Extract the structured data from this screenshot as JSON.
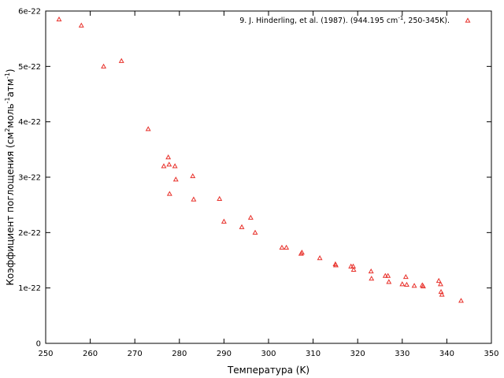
{
  "chart_data": {
    "type": "scatter",
    "xlabel": "Температура (K)",
    "ylabel": {
      "text": "Коэффициент поглощения (см",
      "sup1": "2",
      "mid": "моль",
      "sup2": "-1",
      "mid2": "атм",
      "sup3": "-1",
      "end": ")"
    },
    "xlim": [
      250,
      350
    ],
    "ylim": [
      0,
      6e-22
    ],
    "x_ticks": [
      {
        "value": 250,
        "label": "250"
      },
      {
        "value": 260,
        "label": "260"
      },
      {
        "value": 270,
        "label": "270"
      },
      {
        "value": 280,
        "label": "280"
      },
      {
        "value": 290,
        "label": "290"
      },
      {
        "value": 300,
        "label": "300"
      },
      {
        "value": 310,
        "label": "310"
      },
      {
        "value": 320,
        "label": "320"
      },
      {
        "value": 330,
        "label": "330"
      },
      {
        "value": 340,
        "label": "340"
      },
      {
        "value": 350,
        "label": "350"
      }
    ],
    "y_ticks": [
      {
        "value": 0,
        "label": "0"
      },
      {
        "value": 1e-22,
        "label": "1e-22"
      },
      {
        "value": 2e-22,
        "label": "2e-22"
      },
      {
        "value": 3e-22,
        "label": "3e-22"
      },
      {
        "value": 4e-22,
        "label": "4e-22"
      },
      {
        "value": 5e-22,
        "label": "5e-22"
      },
      {
        "value": 6e-22,
        "label": "6e-22"
      }
    ],
    "grid": false,
    "legend_position": "top-right",
    "series": [
      {
        "name": "9. J. Hinderling, et al. (1987). (944.195 cm-1, 250-345K).",
        "name_parts": {
          "before": "9. J. Hinderling, et al. (1987). (944.195 cm",
          "sup": "-1",
          "after": ", 250-345K)."
        },
        "color": "#e8302a",
        "marker": "triangle",
        "points": [
          [
            253,
            5.85e-22
          ],
          [
            258,
            5.74e-22
          ],
          [
            263,
            5e-22
          ],
          [
            267,
            5.1e-22
          ],
          [
            273,
            3.87e-22
          ],
          [
            276.5,
            3.2e-22
          ],
          [
            277.5,
            3.36e-22
          ],
          [
            277.7,
            3.23e-22
          ],
          [
            277.8,
            2.7e-22
          ],
          [
            279,
            3.2e-22
          ],
          [
            279.2,
            2.96e-22
          ],
          [
            283,
            3.02e-22
          ],
          [
            283.2,
            2.6e-22
          ],
          [
            289,
            2.61e-22
          ],
          [
            290,
            2.2e-22
          ],
          [
            294,
            2.1e-22
          ],
          [
            296,
            2.27e-22
          ],
          [
            297,
            2e-22
          ],
          [
            303,
            1.73e-22
          ],
          [
            304,
            1.73e-22
          ],
          [
            307.3,
            1.62e-22
          ],
          [
            307.5,
            1.64e-22
          ],
          [
            311.5,
            1.54e-22
          ],
          [
            315,
            1.43e-22
          ],
          [
            315.1,
            1.41e-22
          ],
          [
            318.5,
            1.39e-22
          ],
          [
            319,
            1.39e-22
          ],
          [
            319.1,
            1.33e-22
          ],
          [
            323,
            1.3e-22
          ],
          [
            323.1,
            1.17e-22
          ],
          [
            326.2,
            1.22e-22
          ],
          [
            326.8,
            1.22e-22
          ],
          [
            327,
            1.11e-22
          ],
          [
            330,
            1.07e-22
          ],
          [
            330.8,
            1.2e-22
          ],
          [
            331,
            1.06e-22
          ],
          [
            332.7,
            1.04e-22
          ],
          [
            334.5,
            1.05e-22
          ],
          [
            334.7,
            1.03e-22
          ],
          [
            338.2,
            1.13e-22
          ],
          [
            338.6,
            1.07e-22
          ],
          [
            338.7,
            9.3e-23
          ],
          [
            338.9,
            8.8e-23
          ],
          [
            343.2,
            7.7e-23
          ]
        ]
      }
    ]
  }
}
